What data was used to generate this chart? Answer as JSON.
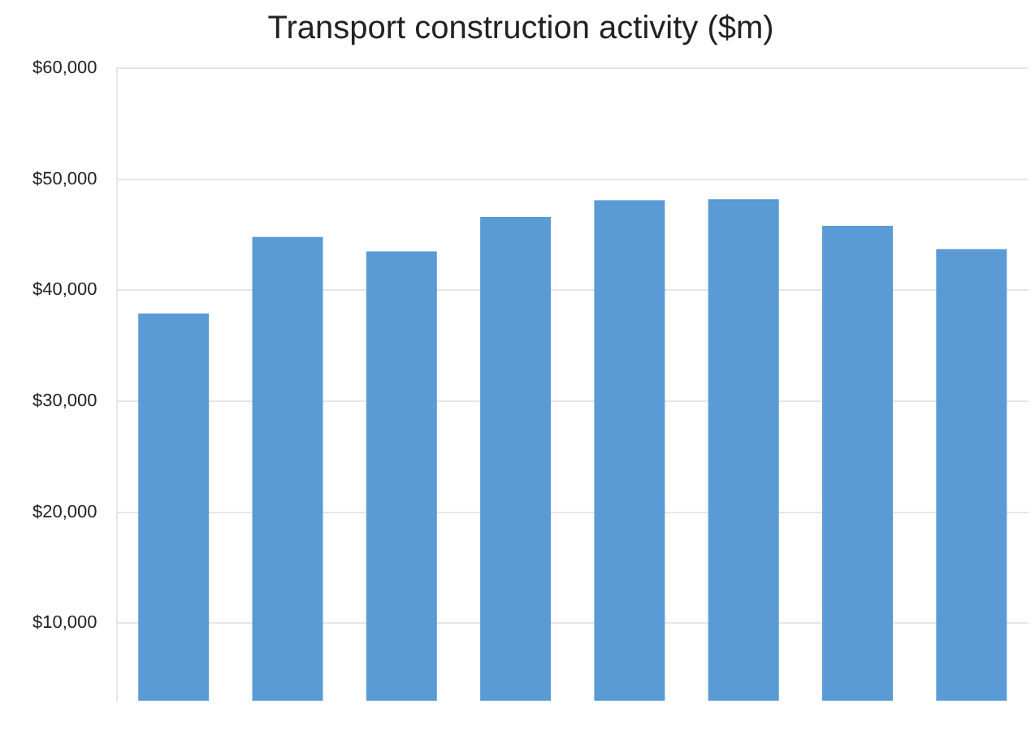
{
  "chart_data": {
    "type": "bar",
    "title": "Transport construction activity ($m)",
    "categories": [
      null,
      null,
      null,
      null,
      null,
      null,
      null,
      null
    ],
    "values": [
      37900,
      44800,
      43500,
      46600,
      48100,
      48200,
      45800,
      43700
    ],
    "color": "#5b9bd5",
    "ylim": [
      3000,
      60000
    ],
    "yticks": [
      {
        "value": 10000,
        "label": "$10,000"
      },
      {
        "value": 20000,
        "label": "$20,000"
      },
      {
        "value": 30000,
        "label": "$30,000"
      },
      {
        "value": 40000,
        "label": "$40,000"
      },
      {
        "value": 50000,
        "label": "$50,000"
      },
      {
        "value": 60000,
        "label": "$60,000"
      }
    ],
    "grid": "y"
  }
}
